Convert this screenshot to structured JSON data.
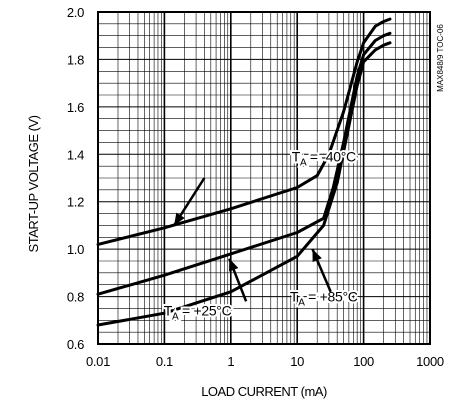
{
  "chart_data": {
    "type": "line",
    "xlabel": "LOAD CURRENT (mA)",
    "ylabel": "START-UP VOLTAGE (V)",
    "figure_id": "MAX848/9 TOC-06",
    "x_scale": "log",
    "xlim": [
      0.01,
      1000
    ],
    "ylim": [
      0.6,
      2.0
    ],
    "x_ticks": [
      "0.01",
      "0.1",
      "1",
      "10",
      "100",
      "1000"
    ],
    "y_ticks": [
      "0.6",
      "0.8",
      "1.0",
      "1.2",
      "1.4",
      "1.6",
      "1.8",
      "2.0"
    ],
    "grid": true,
    "series": [
      {
        "name": "T_A = -40°C",
        "label_main": "T",
        "label_sub": "A",
        "label_rest": " = -40°C",
        "x": [
          0.01,
          0.1,
          1,
          10,
          20,
          30,
          50,
          80,
          100,
          150,
          200,
          250
        ],
        "y": [
          1.02,
          1.09,
          1.17,
          1.26,
          1.31,
          1.4,
          1.58,
          1.79,
          1.87,
          1.94,
          1.96,
          1.97
        ]
      },
      {
        "name": "T_A = +25°C",
        "label_main": "T",
        "label_sub": "A",
        "label_rest": " = +25°C",
        "x": [
          0.01,
          0.1,
          1,
          10,
          25,
          35,
          50,
          80,
          100,
          150,
          200,
          250
        ],
        "y": [
          0.81,
          0.89,
          0.98,
          1.07,
          1.13,
          1.26,
          1.45,
          1.73,
          1.82,
          1.88,
          1.9,
          1.91
        ]
      },
      {
        "name": "T_A = +85°C",
        "label_main": "T",
        "label_sub": "A",
        "label_rest": " = +85°C",
        "x": [
          0.01,
          0.1,
          1,
          10,
          25,
          40,
          60,
          80,
          100,
          150,
          200,
          250
        ],
        "y": [
          0.68,
          0.73,
          0.82,
          0.97,
          1.1,
          1.28,
          1.52,
          1.69,
          1.79,
          1.84,
          1.86,
          1.87
        ]
      }
    ],
    "annotations": [
      {
        "series": 0,
        "text_x": 0.68,
        "text_y": 1.37,
        "arrow_from": [
          0.4,
          1.3
        ],
        "arrow_to": [
          0.14,
          1.1
        ]
      },
      {
        "series": 1,
        "text_x": 0.3,
        "text_y": 0.72,
        "arrow_from": [
          1.7,
          0.78
        ],
        "arrow_to": [
          0.95,
          0.96
        ]
      },
      {
        "series": 2,
        "text_x": 0.68,
        "text_y": 0.78,
        "arrow_from": [
          32,
          0.82
        ],
        "arrow_to": [
          17,
          1.0
        ]
      }
    ]
  }
}
